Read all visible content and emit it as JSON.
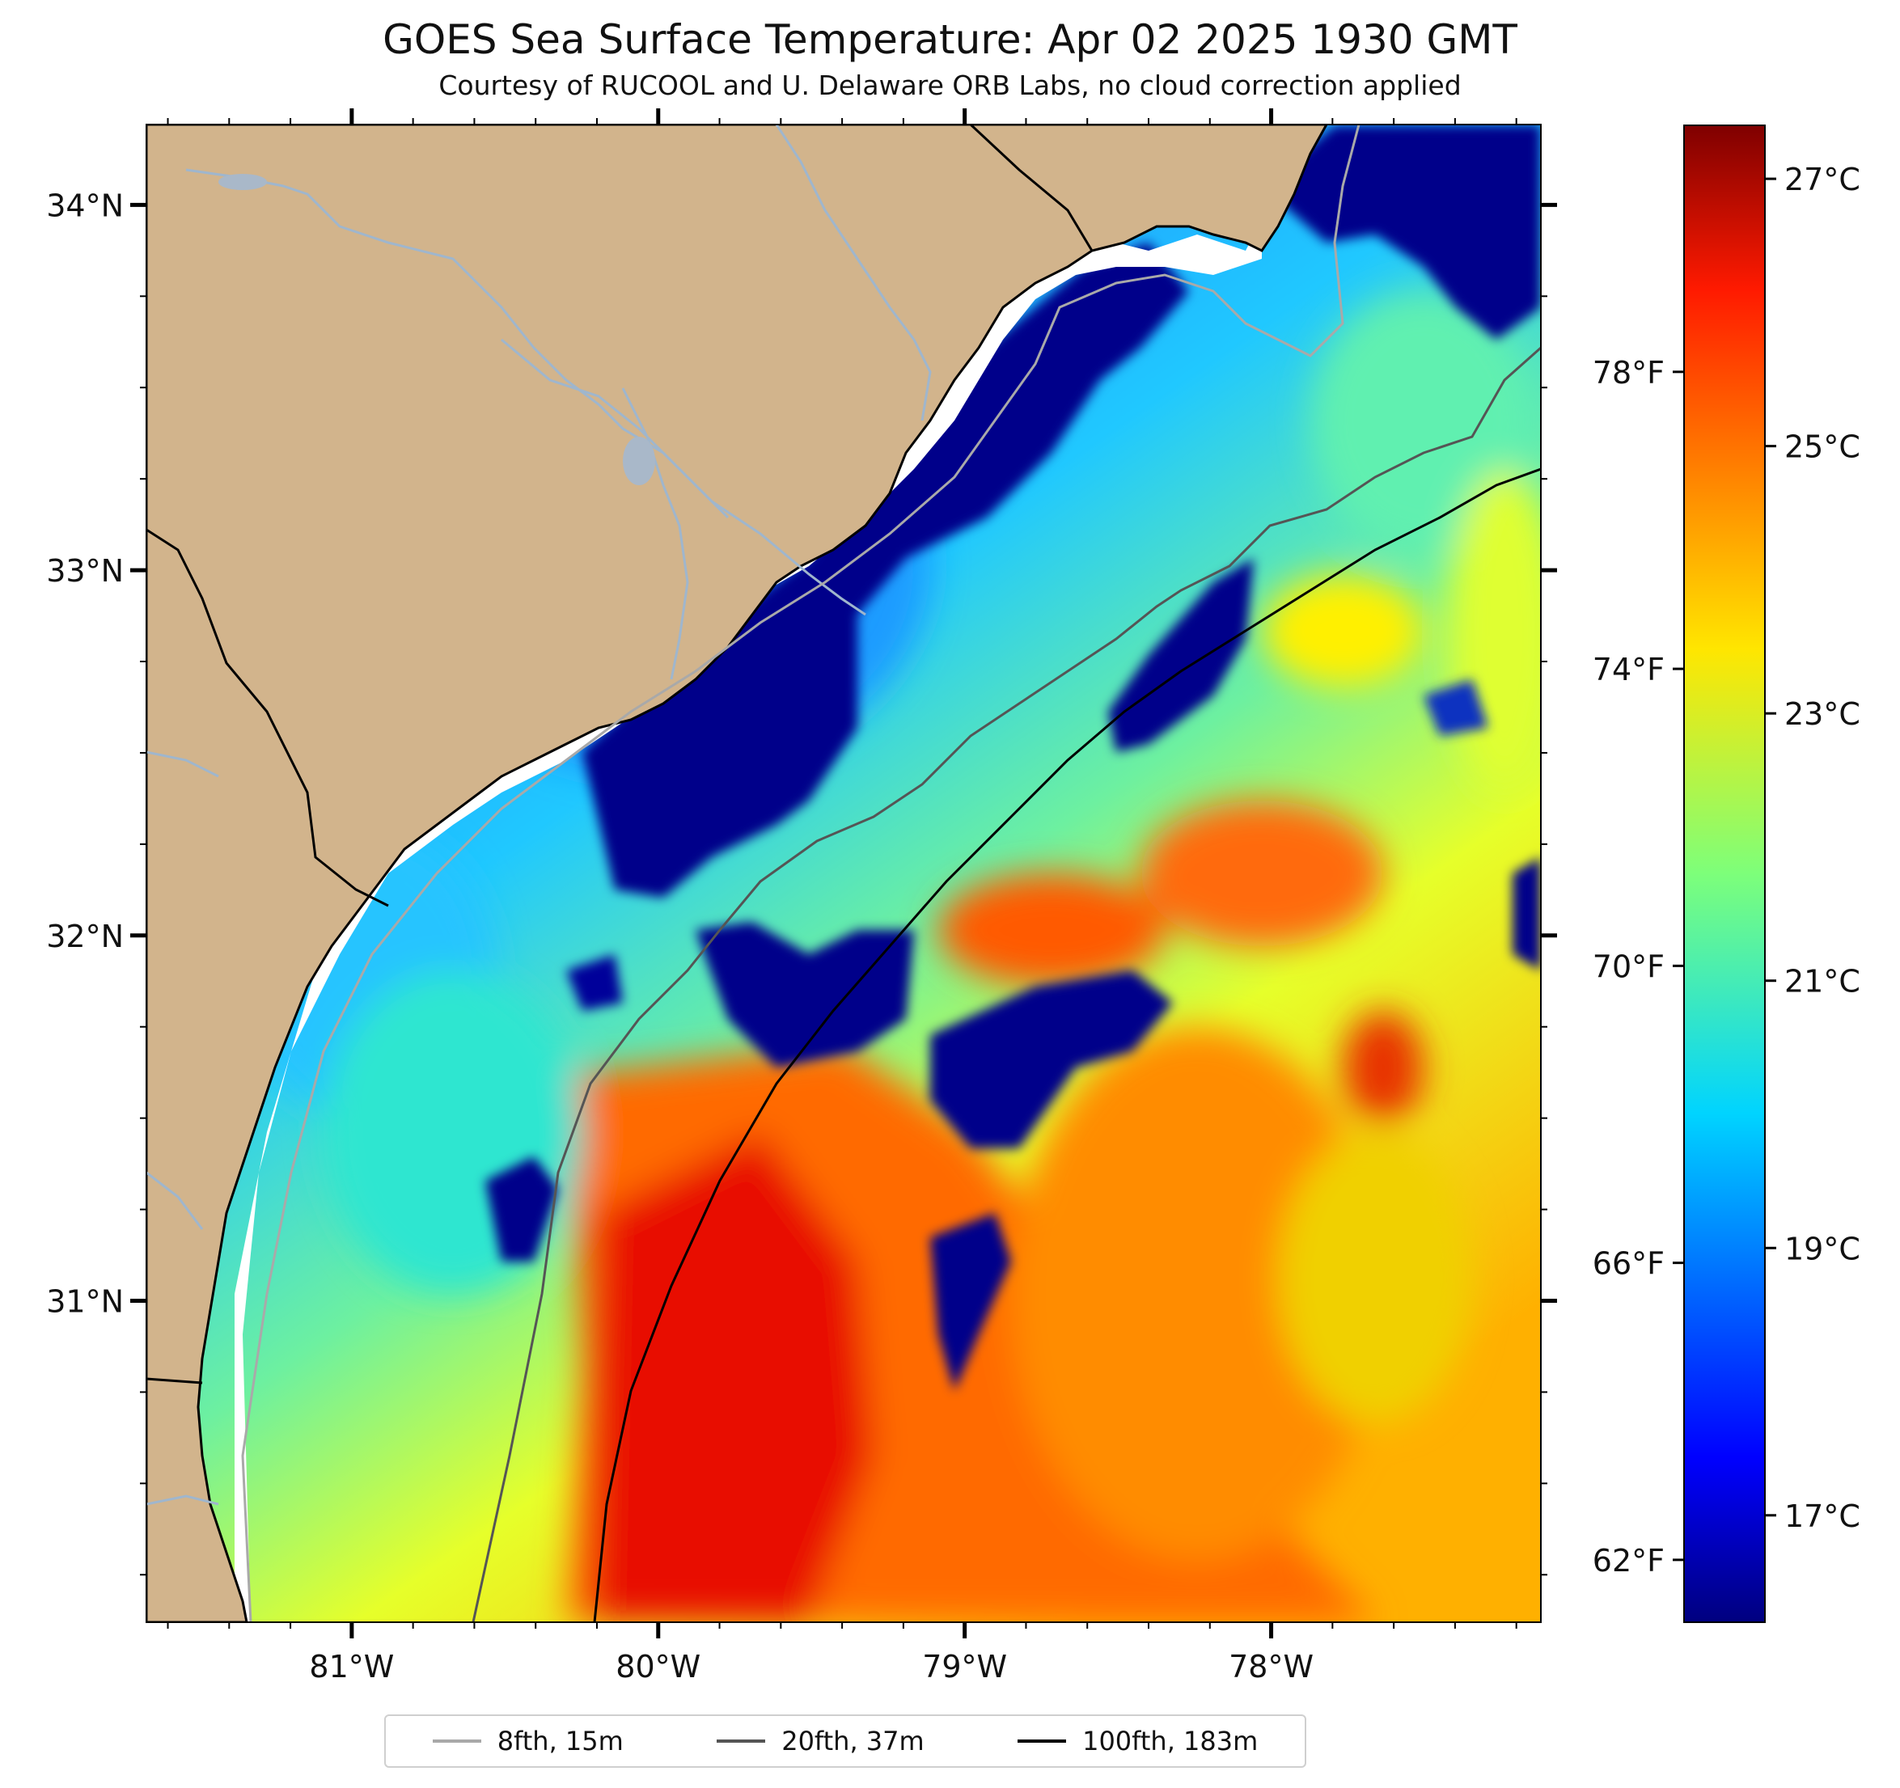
{
  "title": "GOES Sea Surface Temperature: Apr 02 2025 1930 GMT",
  "subtitle": "Courtesy of RUCOOL and U. Delaware ORB Labs, no cloud correction applied",
  "map": {
    "lon_range": [
      -81.67,
      -77.12
    ],
    "lat_range": [
      30.12,
      34.22
    ],
    "lat_ticks": [
      {
        "v": 34,
        "label": "34°N"
      },
      {
        "v": 33,
        "label": "33°N"
      },
      {
        "v": 32,
        "label": "32°N"
      },
      {
        "v": 31,
        "label": "31°N"
      }
    ],
    "lon_ticks": [
      {
        "v": -81,
        "label": "81°W"
      },
      {
        "v": -80,
        "label": "80°W"
      },
      {
        "v": -79,
        "label": "79°W"
      },
      {
        "v": -78,
        "label": "78°W"
      }
    ],
    "land_color": "#d2b48c",
    "river_color": "#9fb6cd"
  },
  "colorbar": {
    "colormap": "jet",
    "celsius_range": [
      16.2,
      27.4
    ],
    "celsius_ticks": [
      {
        "v": 27,
        "label": "27°C"
      },
      {
        "v": 25,
        "label": "25°C"
      },
      {
        "v": 23,
        "label": "23°C"
      },
      {
        "v": 21,
        "label": "21°C"
      },
      {
        "v": 19,
        "label": "19°C"
      },
      {
        "v": 17,
        "label": "17°C"
      }
    ],
    "fahrenheit_ticks": [
      {
        "v": 78,
        "label": "78°F"
      },
      {
        "v": 74,
        "label": "74°F"
      },
      {
        "v": 70,
        "label": "70°F"
      },
      {
        "v": 66,
        "label": "66°F"
      },
      {
        "v": 62,
        "label": "62°F"
      }
    ]
  },
  "legend": [
    {
      "label": "8fth, 15m",
      "color": "#a9a9a9"
    },
    {
      "label": "20fth, 37m",
      "color": "#555555"
    },
    {
      "label": "100fth, 183m",
      "color": "#000000"
    }
  ]
}
